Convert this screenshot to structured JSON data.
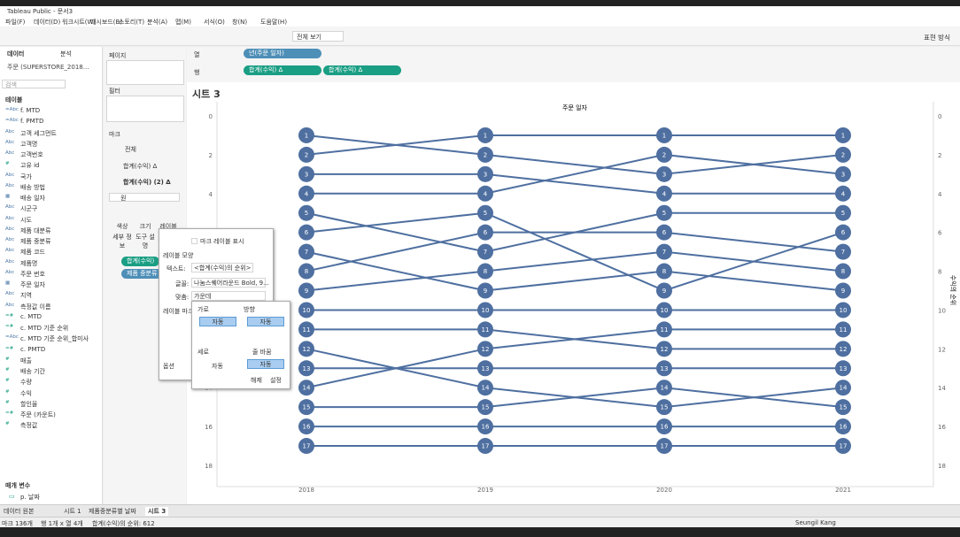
{
  "title_bar": "Tableau Public - 문서3",
  "menu": [
    "파일(F)",
    "데이터(D)",
    "워크시트(W)",
    "대시보드(B)",
    "스토리(T)",
    "분석(A)",
    "맵(M)",
    "서식(O)",
    "창(N)",
    "도움말(H)"
  ],
  "toolbar": {
    "view": "전체 보기",
    "show_me": "표현 방식"
  },
  "data_pane": {
    "tabs": [
      "데이터",
      "분석"
    ],
    "source": "주문 (SUPERSTORE_2018...",
    "search": "검색",
    "section": "테이블",
    "fields": [
      {
        "icon": "=Abc",
        "name": "f. MTD"
      },
      {
        "icon": "=Abc",
        "name": "f. PMTD"
      },
      {
        "icon": "Abc",
        "name": "고객 세그먼트"
      },
      {
        "icon": "Abc",
        "name": "고객명"
      },
      {
        "icon": "Abc",
        "name": "고객번호"
      },
      {
        "icon": "#",
        "name": "고유 id"
      },
      {
        "icon": "Abc",
        "name": "국가"
      },
      {
        "icon": "Abc",
        "name": "배송 방법"
      },
      {
        "icon": "▦",
        "name": "배송 일자"
      },
      {
        "icon": "Abc",
        "name": "시군구"
      },
      {
        "icon": "Abc",
        "name": "시도"
      },
      {
        "icon": "Abc",
        "name": "제품 대분류"
      },
      {
        "icon": "Abc",
        "name": "제품 중분류"
      },
      {
        "icon": "Abc",
        "name": "제품 코드"
      },
      {
        "icon": "Abc",
        "name": "제품명"
      },
      {
        "icon": "Abc",
        "name": "주문 번호"
      },
      {
        "icon": "▦",
        "name": "주문 일자"
      },
      {
        "icon": "Abc",
        "name": "지역"
      },
      {
        "icon": "Abc",
        "name": "측정값 이름"
      },
      {
        "icon": "=#",
        "name": "c. MTD"
      },
      {
        "icon": "=#",
        "name": "c. MTD 기준 순위"
      },
      {
        "icon": "=Abc",
        "name": "c. MTD 기준 순위_합미사"
      },
      {
        "icon": "=#",
        "name": "c. PMTD"
      },
      {
        "icon": "#",
        "name": "매출"
      },
      {
        "icon": "#",
        "name": "배송 기간"
      },
      {
        "icon": "#",
        "name": "수량"
      },
      {
        "icon": "#",
        "name": "수익"
      },
      {
        "icon": "#",
        "name": "할인율"
      },
      {
        "icon": "=#",
        "name": "주문 (카운트)"
      },
      {
        "icon": "#",
        "name": "측정값"
      }
    ],
    "params_title": "매개 변수",
    "params": [
      {
        "icon": "▭",
        "name": "p. 날짜"
      }
    ]
  },
  "shelves": {
    "pages": "페이지",
    "filters": "필터",
    "marks": "마크",
    "marks_all": "전체",
    "marks_1": "합계(수익) Δ",
    "marks_2": "합계(수익) (2) Δ",
    "mark_type": "원",
    "mark_buttons": [
      "색상",
      "크기",
      "레이블",
      "세부 정보",
      "도구 설명"
    ],
    "mark_pills": [
      "합계(수익)",
      "제품 중분류"
    ],
    "columns_label": "열",
    "columns": [
      "년(주문 일자)"
    ],
    "rows_label": "행",
    "rows": [
      "합계(수익) Δ",
      "합계(수익) Δ"
    ]
  },
  "sheet_title": "시트 3",
  "chart": {
    "type": "line",
    "x_title": "주문 일자",
    "y2_title": "수익의 순위",
    "categories": [
      "2018",
      "2019",
      "2020",
      "2021"
    ],
    "ylim": [
      0,
      18
    ],
    "yticks": [
      0,
      2,
      4,
      6,
      8,
      10,
      12,
      14,
      16,
      18
    ],
    "y2lim": [
      0,
      18
    ],
    "y2ticks": [
      0,
      2,
      4,
      6,
      8,
      10,
      12,
      14,
      16,
      18
    ],
    "reverse_y": true,
    "color": "#4e6fa0",
    "series": [
      {
        "values": [
          1,
          2,
          3,
          2
        ]
      },
      {
        "values": [
          2,
          1,
          1,
          1
        ]
      },
      {
        "values": [
          3,
          3,
          4,
          4
        ]
      },
      {
        "values": [
          4,
          4,
          2,
          3
        ]
      },
      {
        "values": [
          5,
          7,
          5,
          5
        ]
      },
      {
        "values": [
          6,
          5,
          9,
          6
        ]
      },
      {
        "values": [
          7,
          9,
          8,
          9
        ]
      },
      {
        "values": [
          8,
          6,
          6,
          7
        ]
      },
      {
        "values": [
          9,
          8,
          7,
          8
        ]
      },
      {
        "values": [
          10,
          10,
          10,
          10
        ]
      },
      {
        "values": [
          11,
          11,
          12,
          12
        ]
      },
      {
        "values": [
          12,
          14,
          15,
          14
        ]
      },
      {
        "values": [
          13,
          13,
          13,
          13
        ]
      },
      {
        "values": [
          14,
          12,
          11,
          11
        ]
      },
      {
        "values": [
          15,
          15,
          14,
          15
        ]
      },
      {
        "values": [
          16,
          16,
          16,
          16
        ]
      },
      {
        "values": [
          17,
          17,
          17,
          17
        ]
      }
    ]
  },
  "label_dialog": {
    "show": "마크 레이블 표시",
    "appearance": "레이블 모양",
    "text_label": "텍스트:",
    "text_value": "<합계(수익)의 순위>",
    "font_label": "글꼴:",
    "font_value": "나눔스퀘어라운드 Bold, 9...",
    "align_label": "맞춤:",
    "align_value": "가운데",
    "marks_label": "레이블 마크",
    "options": "옵션",
    "align_popup": {
      "horizontal": "가로",
      "direction": "방향",
      "h_auto": "자동",
      "d_auto": "자동",
      "vertical": "세로",
      "wrap": "줄 바꿈",
      "v_auto": "자동",
      "w_auto": "자동",
      "off": "해제",
      "on": "설정"
    }
  },
  "sheet_tabs": [
    "데이터 원본",
    "시트 1",
    "제품중분류별 날짜",
    "시트 3"
  ],
  "status": [
    "마크 136개",
    "행 1개 x 열 4개",
    "합계(수익)의 순위: 612",
    "Seungil Kang"
  ]
}
